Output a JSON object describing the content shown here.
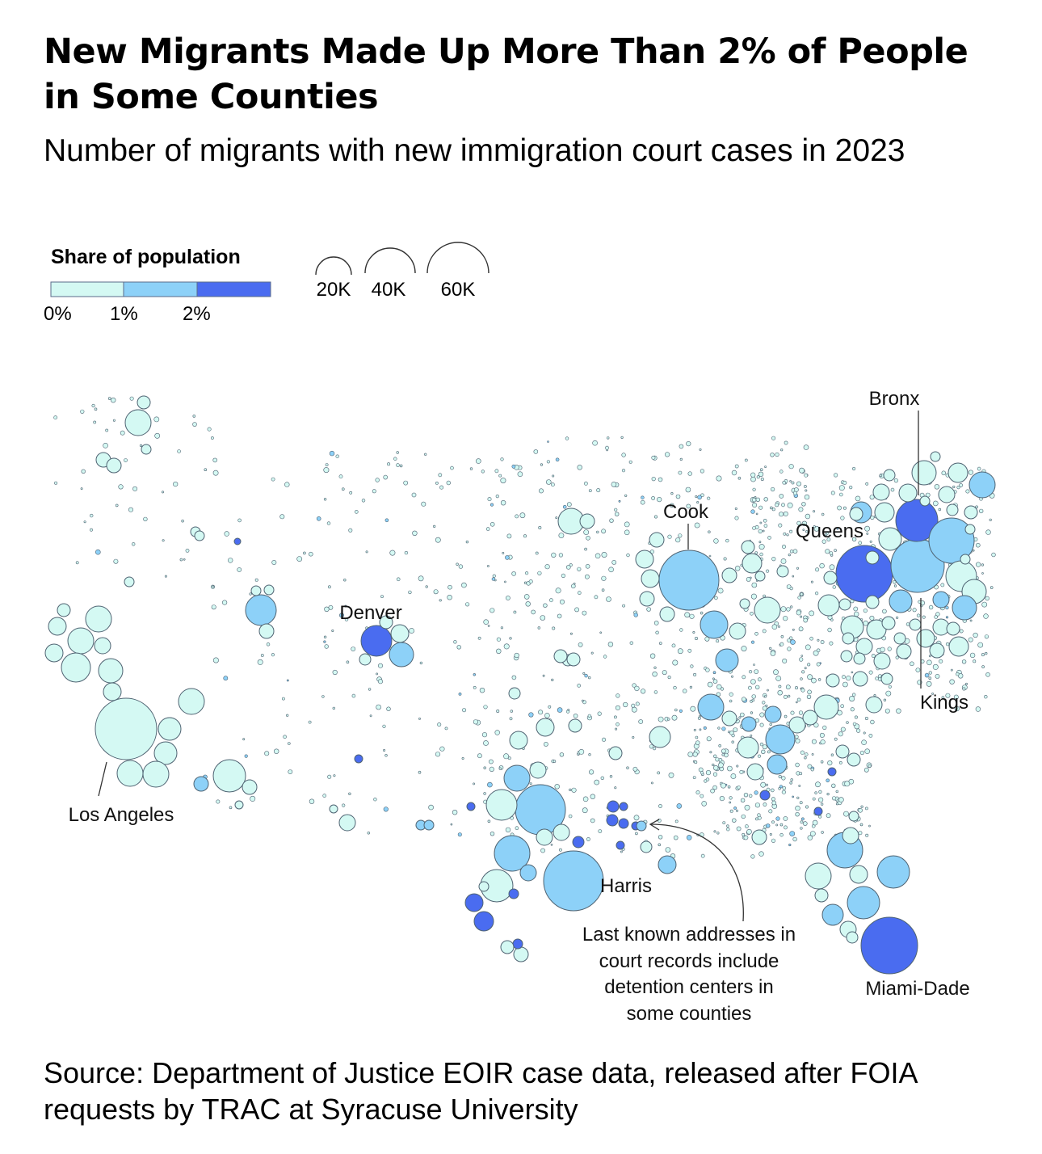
{
  "title": "New Migrants Made Up More Than 2% of People in Some Counties",
  "subtitle": "Number of migrants with new immigration court cases in 2023",
  "legend": {
    "color_title": "Share of population",
    "color_ticks": [
      "0%",
      "1%",
      "2%"
    ],
    "color_bins": [
      "#d4f9f3",
      "#8dd1f8",
      "#4a6cf0"
    ],
    "size_ticks": [
      "20K",
      "40K",
      "60K"
    ]
  },
  "labels": {
    "bronx": "Bronx",
    "cook": "Cook",
    "queens": "Queens",
    "denver": "Denver",
    "kings": "Kings",
    "los_angeles": "Los Angeles",
    "harris": "Harris",
    "miami_dade": "Miami-Dade",
    "annotation": [
      "Last known addresses in",
      "court records include",
      "detention centers in",
      "some counties"
    ]
  },
  "source": "Source: Department of Justice EOIR case data, released after FOIA requests by TRAC at Syracuse University"
}
